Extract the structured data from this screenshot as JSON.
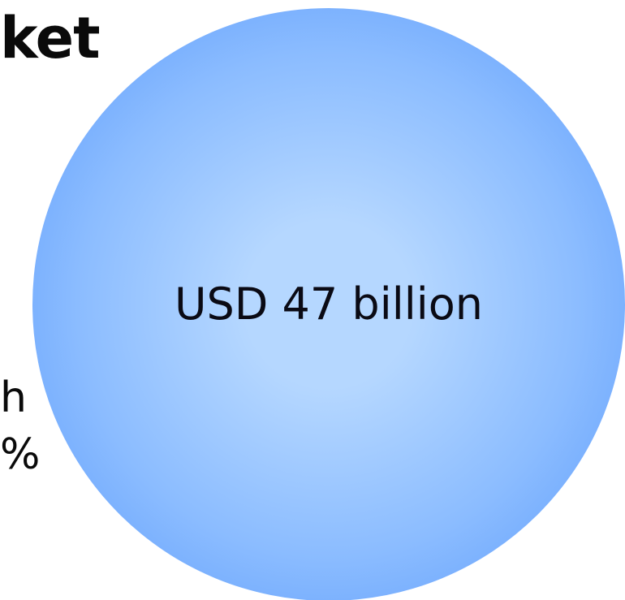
{
  "slide": {
    "title_fragment": "ket",
    "body_fragment_lines": [
      "h",
      "%"
    ],
    "bubble": {
      "label": "USD 47 billion",
      "color_center": "#b5d7ff",
      "color_edge": "#5b9bfb"
    }
  }
}
